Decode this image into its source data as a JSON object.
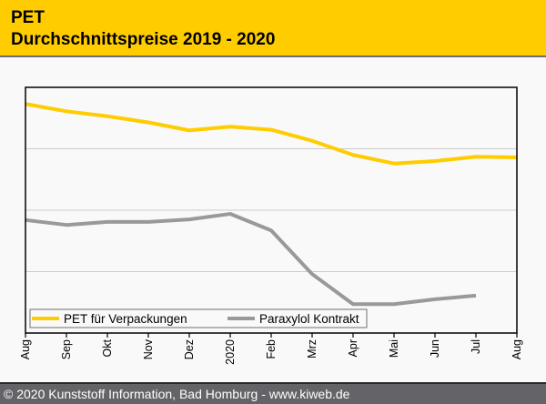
{
  "header": {
    "title_line1": "PET",
    "title_line2": "Durchschnittspreise 2019 - 2020"
  },
  "footer": {
    "text": "© 2020 Kunststoff Information, Bad Homburg - www.kiweb.de"
  },
  "colors": {
    "header_bg": "#ffcc00",
    "pet": "#ffcc00",
    "paraxylol": "#999999",
    "footer_bg": "#646468"
  },
  "chart_data": {
    "type": "line",
    "title": "PET Durchschnittspreise 2019 - 2020",
    "xlabel": "",
    "ylabel": "",
    "categories": [
      "Aug",
      "Sep",
      "Okt",
      "Nov",
      "Dez",
      "2020",
      "Feb",
      "Mrz",
      "Apr",
      "Mai",
      "Jun",
      "Jul",
      "Aug"
    ],
    "ylim": [
      0,
      4
    ],
    "y_note": "relative units (unlabeled axis)",
    "grid": true,
    "legend_position": "bottom-left",
    "series": [
      {
        "name": "PET für Verpackungen",
        "color": "#ffcc00",
        "values": [
          3.73,
          3.61,
          3.53,
          3.43,
          3.3,
          3.36,
          3.31,
          3.13,
          2.9,
          2.76,
          2.8,
          2.87,
          2.86
        ]
      },
      {
        "name": "Paraxylol Kontrakt",
        "color": "#999999",
        "values": [
          1.84,
          1.76,
          1.81,
          1.81,
          1.85,
          1.94,
          1.67,
          0.96,
          0.47,
          0.47,
          0.55,
          0.61,
          null
        ]
      }
    ]
  }
}
